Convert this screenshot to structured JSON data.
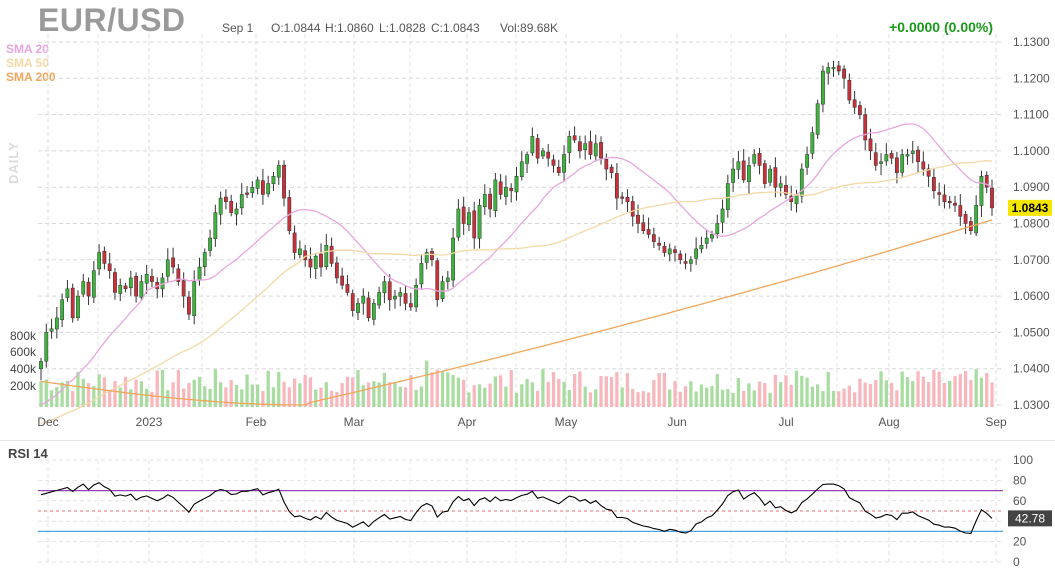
{
  "header": {
    "symbol": "EUR/USD",
    "date": "Sep 1",
    "open": "O:1.0844",
    "high": "H:1.0860",
    "low": "L:1.0828",
    "close": "C:1.0843",
    "volume": "Vol:89.68K",
    "change": "+0.0000 (0.00%)"
  },
  "indicators": [
    {
      "label": "SMA 20",
      "color": "#e8a6e0"
    },
    {
      "label": "SMA 50",
      "color": "#f3d9a6"
    },
    {
      "label": "SMA 200",
      "color": "#f2a65a"
    }
  ],
  "timeframe_label": "DAILY",
  "rsi_title": "RSI 14",
  "colors": {
    "up": "#3cb43c",
    "down": "#c8303a",
    "vol_up": "#a9dca0",
    "vol_down": "#f7b7bd",
    "rsi_line": "#000000",
    "rsi_upper": "#9b3fb8",
    "rsi_lower": "#4aa6e0",
    "rsi_mid": "#e07070"
  },
  "chart_data": [
    {
      "type": "candlestick",
      "title": "EUR/USD",
      "ylim": [
        1.03,
        1.13
      ],
      "yticks": [
        "1.1300",
        "1.1200",
        "1.1100",
        "1.1000",
        "1.0900",
        "1.0800",
        "1.0700",
        "1.0600",
        "1.0500",
        "1.0400",
        "1.0300"
      ],
      "xticks": [
        "Dec",
        "2023",
        "Feb",
        "Mar",
        "Apr",
        "May",
        "Jun",
        "Jul",
        "Aug",
        "Sep"
      ],
      "volume_ticks": [
        "800k",
        "600k",
        "400k",
        "200k"
      ],
      "last_price": "1.0843",
      "grid": true,
      "series_close": [
        1.042,
        1.05,
        1.051,
        1.054,
        1.059,
        1.062,
        1.054,
        1.06,
        1.064,
        1.06,
        1.067,
        1.072,
        1.069,
        1.067,
        1.061,
        1.063,
        1.062,
        1.065,
        1.06,
        1.064,
        1.066,
        1.064,
        1.062,
        1.065,
        1.07,
        1.068,
        1.064,
        1.06,
        1.055,
        1.064,
        1.068,
        1.072,
        1.076,
        1.083,
        1.087,
        1.086,
        1.083,
        1.084,
        1.088,
        1.088,
        1.09,
        1.092,
        1.088,
        1.091,
        1.093,
        1.096,
        1.087,
        1.078,
        1.072,
        1.073,
        1.07,
        1.068,
        1.071,
        1.068,
        1.074,
        1.069,
        1.065,
        1.063,
        1.061,
        1.056,
        1.058,
        1.06,
        1.054,
        1.058,
        1.061,
        1.064,
        1.059,
        1.06,
        1.061,
        1.058,
        1.057,
        1.063,
        1.069,
        1.072,
        1.07,
        1.059,
        1.064,
        1.065,
        1.076,
        1.084,
        1.08,
        1.083,
        1.076,
        1.085,
        1.088,
        1.084,
        1.092,
        1.088,
        1.09,
        1.089,
        1.093,
        1.097,
        1.099,
        1.104,
        1.098,
        1.1,
        1.098,
        1.096,
        1.094,
        1.099,
        1.104,
        1.103,
        1.1,
        1.102,
        1.099,
        1.102,
        1.098,
        1.095,
        1.094,
        1.087,
        1.087,
        1.086,
        1.082,
        1.08,
        1.078,
        1.077,
        1.075,
        1.074,
        1.072,
        1.073,
        1.072,
        1.07,
        1.069,
        1.07,
        1.073,
        1.074,
        1.076,
        1.077,
        1.08,
        1.084,
        1.091,
        1.095,
        1.097,
        1.092,
        1.096,
        1.099,
        1.096,
        1.091,
        1.095,
        1.09,
        1.091,
        1.088,
        1.086,
        1.088,
        1.095,
        1.099,
        1.105,
        1.113,
        1.122,
        1.123,
        1.123,
        1.122,
        1.12,
        1.114,
        1.112,
        1.11,
        1.103,
        1.1,
        1.096,
        1.097,
        1.099,
        1.098,
        1.094,
        1.099,
        1.099,
        1.1,
        1.097,
        1.095,
        1.093,
        1.089,
        1.088,
        1.086,
        1.086,
        1.085,
        1.082,
        1.08,
        1.078,
        1.085,
        1.093,
        1.09,
        1.0843
      ],
      "rsi": {
        "ylim": [
          0,
          100
        ],
        "yticks": [
          "100",
          "80",
          "60",
          "40",
          "20",
          "0"
        ],
        "overbought": 70,
        "oversold": 30,
        "midline": 50,
        "last_value": "42.78"
      }
    }
  ]
}
